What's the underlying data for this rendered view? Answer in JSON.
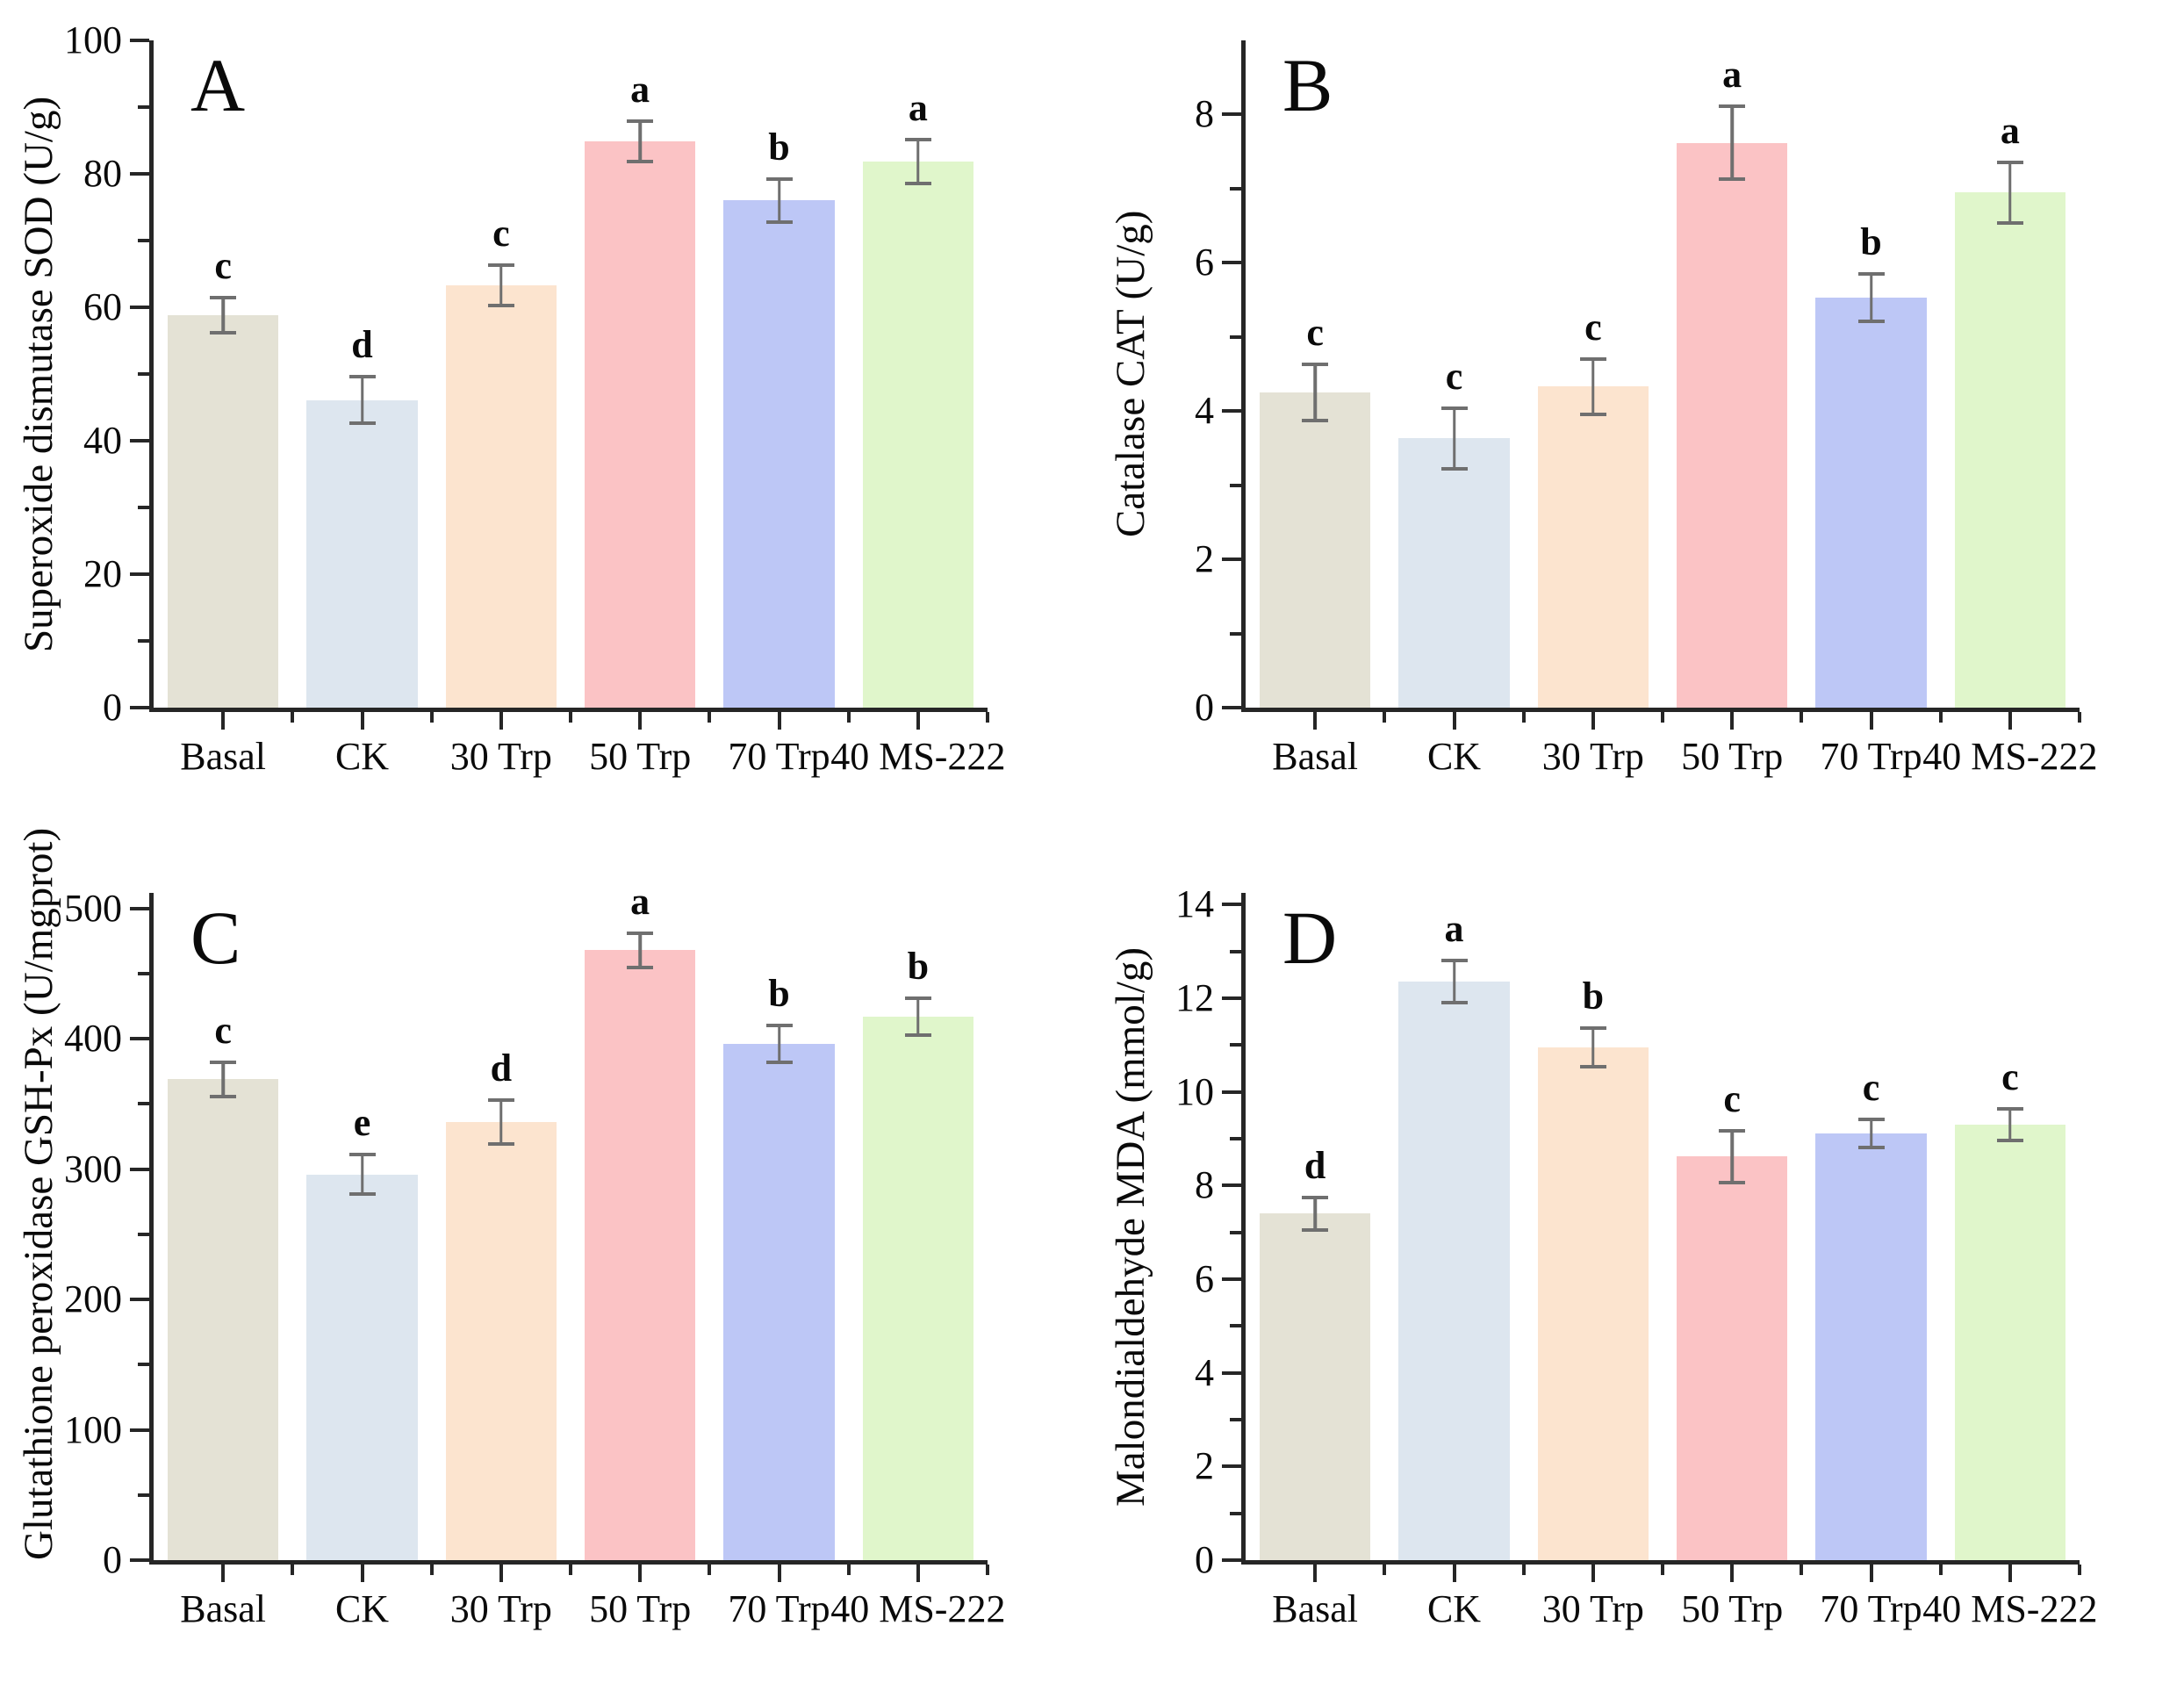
{
  "figure": {
    "background": "#ffffff",
    "axis_color": "#262626",
    "text_color": "#0a0a0a",
    "error_bar_color": "#6f6f6f",
    "categories": [
      "Basal",
      "CK",
      "30 Trp",
      "50 Trp",
      "70 Trp",
      "40 MS-222"
    ],
    "bar_colors": [
      "#e4e2d5",
      "#dde6ef",
      "#fce4cf",
      "#fbc3c5",
      "#bdc7f6",
      "#e0f6cb"
    ],
    "layout": {
      "rows": 2,
      "cols": 2,
      "panel_order": [
        "A",
        "B",
        "C",
        "D"
      ]
    }
  },
  "chart_data": [
    {
      "type": "bar",
      "panel": "A",
      "title": "",
      "xlabel": "",
      "ylabel": "Superoxide dismutase SOD (U/g)",
      "categories": [
        "Basal",
        "CK",
        "30 Trp",
        "50 Trp",
        "70 Trp",
        "40 MS-222"
      ],
      "values": [
        58.8,
        46.1,
        63.3,
        84.9,
        76.0,
        81.8
      ],
      "errors": [
        2.6,
        3.5,
        3.0,
        3.0,
        3.2,
        3.3
      ],
      "sig_letters": [
        "c",
        "d",
        "c",
        "a",
        "b",
        "a"
      ],
      "ylim": [
        0,
        100
      ],
      "ytick_step": 20,
      "yminor_step": 10,
      "ytick_labels": [
        "0",
        "20",
        "40",
        "60",
        "80",
        "100"
      ],
      "grid": false,
      "legend": "none"
    },
    {
      "type": "bar",
      "panel": "B",
      "title": "",
      "xlabel": "",
      "ylabel": "Catalase CAT (U/g)",
      "categories": [
        "Basal",
        "CK",
        "30 Trp",
        "50 Trp",
        "70 Trp",
        "40 MS-222"
      ],
      "values": [
        4.25,
        3.63,
        4.33,
        7.62,
        5.53,
        6.95
      ],
      "errors": [
        0.38,
        0.41,
        0.37,
        0.49,
        0.32,
        0.41
      ],
      "sig_letters": [
        "c",
        "c",
        "c",
        "a",
        "b",
        "a"
      ],
      "ylim": [
        0,
        9
      ],
      "ytick_step": 2,
      "yminor_step": 1,
      "ytick_labels": [
        "0",
        "2",
        "4",
        "6",
        "8"
      ],
      "grid": false,
      "legend": "none"
    },
    {
      "type": "bar",
      "panel": "C",
      "title": "",
      "xlabel": "",
      "ylabel": "Glutathione peroxidase GSH-Px (U/mgprot)",
      "categories": [
        "Basal",
        "CK",
        "30 Trp",
        "50 Trp",
        "70 Trp",
        "40 MS-222"
      ],
      "values": [
        369,
        296,
        336,
        468,
        396,
        417
      ],
      "errors": [
        13,
        15,
        17,
        13,
        14,
        14
      ],
      "sig_letters": [
        "c",
        "e",
        "d",
        "a",
        "b",
        "b"
      ],
      "ylim": [
        0,
        512
      ],
      "ytick_step": 100,
      "yminor_step": 50,
      "ytick_labels": [
        "0",
        "100",
        "200",
        "300",
        "400",
        "500"
      ],
      "grid": false,
      "legend": "none"
    },
    {
      "type": "bar",
      "panel": "D",
      "title": "",
      "xlabel": "",
      "ylabel": "Malondialdehyde MDA (mmol/g)",
      "categories": [
        "Basal",
        "CK",
        "30 Trp",
        "50 Trp",
        "70 Trp",
        "40 MS-222"
      ],
      "values": [
        7.4,
        12.35,
        10.95,
        8.62,
        9.12,
        9.3
      ],
      "errors": [
        0.35,
        0.45,
        0.42,
        0.55,
        0.3,
        0.33
      ],
      "sig_letters": [
        "d",
        "a",
        "b",
        "c",
        "c",
        "c"
      ],
      "ylim": [
        0,
        14.25
      ],
      "ytick_step": 2,
      "yminor_step": 1,
      "ytick_labels": [
        "0",
        "2",
        "4",
        "6",
        "8",
        "10",
        "12",
        "14"
      ],
      "grid": false,
      "legend": "none"
    }
  ]
}
